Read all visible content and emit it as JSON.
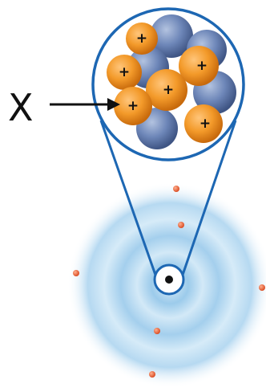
{
  "diagram": {
    "pointer_label": "X",
    "proton_symbol": "+",
    "colors": {
      "proton": "#f39a2a",
      "neutron": "#6d86b8",
      "outline": "#1d67b3",
      "electron": "#e0582f",
      "cloud": "#8fc3e6"
    }
  }
}
